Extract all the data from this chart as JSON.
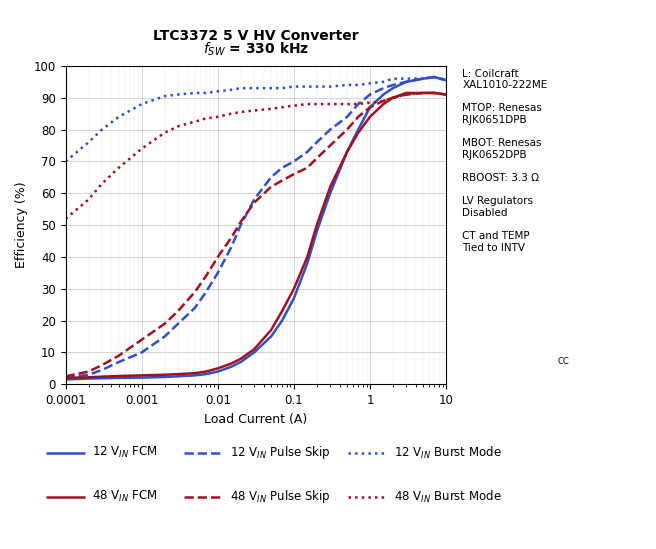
{
  "title_line1": "LTC3372 5 V HV Converter",
  "title_line2": "f$_{SW}$ = 330 kHz",
  "xlabel": "Load Current (A)",
  "ylabel": "Efficiency (%)",
  "xlim": [
    0.0001,
    10
  ],
  "ylim": [
    0,
    100
  ],
  "annotation_text": "L: Coilcraft\nXAL1010-222ME\n\nMTOP: Renesas\nRJK0651DPB\n\nMBOT: Renesas\nRJK0652DPB\n\nRBOOST: 3.3 Ω\n\nLV Regulators\nDisabled\n\nCT and TEMP\nTied to INTV₂₂",
  "annotation_text2": "CT and TEMP\nTied to INTV",
  "blue_color": "#3050C8",
  "red_color": "#A01020",
  "series": {
    "v12_fcm": {
      "x": [
        0.0001,
        0.0002,
        0.0003,
        0.0005,
        0.001,
        0.002,
        0.003,
        0.005,
        0.007,
        0.01,
        0.015,
        0.02,
        0.03,
        0.05,
        0.07,
        0.1,
        0.15,
        0.2,
        0.3,
        0.5,
        0.7,
        1.0,
        1.5,
        2.0,
        3.0,
        5.0,
        7.0,
        10.0
      ],
      "y": [
        1.5,
        1.8,
        1.9,
        2.0,
        2.1,
        2.3,
        2.5,
        2.8,
        3.2,
        4.0,
        5.5,
        7.0,
        10.0,
        15.0,
        20.0,
        27.0,
        38.0,
        48.0,
        60.0,
        73.0,
        80.0,
        87.0,
        91.0,
        93.0,
        95.0,
        96.0,
        96.5,
        95.5
      ],
      "color": "#3050C8",
      "linestyle": "-",
      "linewidth": 1.8,
      "label": "12 V$_{IN}$ FCM"
    },
    "v12_pskip": {
      "x": [
        0.0001,
        0.0002,
        0.0003,
        0.0005,
        0.001,
        0.002,
        0.003,
        0.005,
        0.007,
        0.01,
        0.015,
        0.02,
        0.03,
        0.05,
        0.07,
        0.1,
        0.15,
        0.2,
        0.3,
        0.5,
        0.7,
        1.0,
        1.5,
        2.0,
        3.0,
        5.0,
        7.0,
        10.0
      ],
      "y": [
        2.0,
        3.0,
        4.5,
        7.0,
        10.0,
        15.0,
        19.0,
        24.0,
        29.0,
        35.0,
        43.0,
        50.0,
        58.0,
        65.0,
        68.0,
        70.0,
        73.0,
        76.0,
        80.0,
        84.0,
        88.0,
        91.0,
        93.0,
        94.0,
        95.0,
        96.0,
        96.5,
        95.5
      ],
      "color": "#3050C8",
      "linestyle": "--",
      "linewidth": 1.8,
      "label": "12 V$_{IN}$ Pulse Skip"
    },
    "v12_burst": {
      "x": [
        0.0001,
        0.0002,
        0.0003,
        0.0005,
        0.001,
        0.002,
        0.003,
        0.005,
        0.007,
        0.01,
        0.015,
        0.02,
        0.03,
        0.05,
        0.07,
        0.1,
        0.15,
        0.2,
        0.3,
        0.5,
        0.7,
        1.0,
        1.5,
        2.0,
        3.0,
        5.0,
        7.0,
        10.0
      ],
      "y": [
        70.0,
        76.0,
        80.0,
        84.0,
        88.0,
        90.5,
        91.0,
        91.5,
        91.5,
        92.0,
        92.5,
        93.0,
        93.0,
        93.0,
        93.0,
        93.5,
        93.5,
        93.5,
        93.5,
        94.0,
        94.0,
        94.5,
        95.0,
        96.0,
        96.0,
        96.0,
        96.5,
        95.5
      ],
      "color": "#3050C8",
      "linestyle": ":",
      "linewidth": 1.8,
      "label": "12 V$_{IN}$ Burst Mode"
    },
    "v48_fcm": {
      "x": [
        0.0001,
        0.0002,
        0.0003,
        0.0005,
        0.001,
        0.002,
        0.003,
        0.005,
        0.007,
        0.01,
        0.015,
        0.02,
        0.03,
        0.05,
        0.07,
        0.1,
        0.15,
        0.2,
        0.3,
        0.5,
        0.7,
        1.0,
        1.5,
        2.0,
        3.0,
        5.0,
        7.0,
        10.0
      ],
      "y": [
        2.0,
        2.2,
        2.4,
        2.6,
        2.8,
        3.0,
        3.2,
        3.5,
        4.0,
        5.0,
        6.5,
        8.0,
        11.0,
        17.0,
        23.0,
        30.0,
        40.0,
        50.0,
        62.0,
        73.0,
        79.0,
        84.0,
        88.0,
        90.0,
        91.5,
        91.5,
        91.5,
        91.0
      ],
      "color": "#A01020",
      "linestyle": "-",
      "linewidth": 1.8,
      "label": "48 V$_{IN}$ FCM"
    },
    "v48_pskip": {
      "x": [
        0.0001,
        0.0002,
        0.0003,
        0.0005,
        0.001,
        0.002,
        0.003,
        0.005,
        0.007,
        0.01,
        0.015,
        0.02,
        0.03,
        0.05,
        0.07,
        0.1,
        0.15,
        0.2,
        0.3,
        0.5,
        0.7,
        1.0,
        1.5,
        2.0,
        3.0,
        5.0,
        7.0,
        10.0
      ],
      "y": [
        2.5,
        4.0,
        6.0,
        9.0,
        14.0,
        19.0,
        23.0,
        29.0,
        34.0,
        40.0,
        46.0,
        51.0,
        57.0,
        62.0,
        64.0,
        66.0,
        68.0,
        71.0,
        75.0,
        80.0,
        84.0,
        87.0,
        89.0,
        90.0,
        91.0,
        91.5,
        91.5,
        91.0
      ],
      "color": "#A01020",
      "linestyle": "--",
      "linewidth": 1.8,
      "label": "48 V$_{IN}$ Pulse Skip"
    },
    "v48_burst": {
      "x": [
        0.0001,
        0.0002,
        0.0003,
        0.0005,
        0.001,
        0.002,
        0.003,
        0.005,
        0.007,
        0.01,
        0.015,
        0.02,
        0.03,
        0.05,
        0.07,
        0.1,
        0.15,
        0.2,
        0.3,
        0.5,
        0.7,
        1.0,
        1.5,
        2.0,
        3.0,
        5.0,
        7.0,
        10.0
      ],
      "y": [
        52.0,
        58.0,
        63.0,
        68.0,
        74.0,
        79.0,
        81.0,
        82.5,
        83.5,
        84.0,
        85.0,
        85.5,
        86.0,
        86.5,
        87.0,
        87.5,
        88.0,
        88.0,
        88.0,
        88.0,
        88.0,
        88.5,
        89.0,
        90.0,
        91.0,
        91.5,
        91.5,
        91.0
      ],
      "color": "#A01020",
      "linestyle": ":",
      "linewidth": 1.8,
      "label": "48 V$_{IN}$ Burst Mode"
    }
  }
}
